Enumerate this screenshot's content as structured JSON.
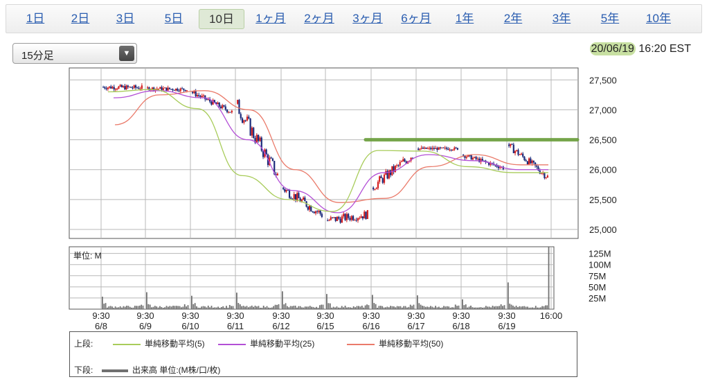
{
  "tabs": [
    {
      "label": "1日",
      "active": false
    },
    {
      "label": "2日",
      "active": false
    },
    {
      "label": "3日",
      "active": false
    },
    {
      "label": "5日",
      "active": false
    },
    {
      "label": "10日",
      "active": true
    },
    {
      "label": "1ヶ月",
      "active": false
    },
    {
      "label": "2ヶ月",
      "active": false
    },
    {
      "label": "3ヶ月",
      "active": false
    },
    {
      "label": "6ヶ月",
      "active": false
    },
    {
      "label": "1年",
      "active": false
    },
    {
      "label": "2年",
      "active": false
    },
    {
      "label": "3年",
      "active": false
    },
    {
      "label": "5年",
      "active": false
    },
    {
      "label": "10年",
      "active": false
    }
  ],
  "interval_select": {
    "value": "15分足"
  },
  "timestamp": {
    "date": "20/06/19",
    "time": "16:20 EST"
  },
  "colors": {
    "candle_up": "#d42020",
    "candle_down": "#1a2a7a",
    "ma5": "#a8cc5a",
    "ma25": "#b34fd6",
    "ma50": "#ea7a6a",
    "volume": "#707070",
    "highlight": "#6a9e3a",
    "grid": "#b8b8b8"
  },
  "chart_data": [
    {
      "type": "candlestick",
      "title": "",
      "ylim": [
        24850,
        27700
      ],
      "yticks": [
        25000,
        25500,
        26000,
        26500,
        27000,
        27500
      ],
      "ytick_labels": [
        "25,000",
        "25,500",
        "26,000",
        "26,500",
        "27,000",
        "27,500"
      ],
      "sessions": [
        {
          "time": "9:30",
          "date": "6/8",
          "open": 27380,
          "close": 27370,
          "high": 27620,
          "low": 27180
        },
        {
          "time": "9:30",
          "date": "6/9",
          "open": 27360,
          "close": 27340,
          "high": 27480,
          "low": 27130
        },
        {
          "time": "9:30",
          "date": "6/10",
          "open": 27300,
          "close": 26960,
          "high": 27420,
          "low": 26900
        },
        {
          "time": "9:30",
          "date": "6/11",
          "open": 27100,
          "close": 25900,
          "high": 27350,
          "low": 25800
        },
        {
          "time": "9:30",
          "date": "6/12",
          "open": 25700,
          "close": 25250,
          "high": 26020,
          "low": 25080
        },
        {
          "time": "9:30",
          "date": "6/15",
          "open": 25150,
          "close": 25250,
          "high": 25700,
          "low": 24880
        },
        {
          "time": "9:30",
          "date": "6/16",
          "open": 25700,
          "close": 26250,
          "high": 26620,
          "low": 25600
        },
        {
          "time": "9:30",
          "date": "6/17",
          "open": 26350,
          "close": 26350,
          "high": 26450,
          "low": 26200
        },
        {
          "time": "9:30",
          "date": "6/18",
          "open": 26250,
          "close": 26030,
          "high": 26320,
          "low": 25920
        },
        {
          "time": "9:30",
          "date": "6/19",
          "open": 26420,
          "close": 25880,
          "high": 26450,
          "low": 25740
        }
      ],
      "last_tick": "16:00",
      "ma5": [
        27300,
        27340,
        27020,
        25900,
        25500,
        25300,
        26320,
        26310,
        26050,
        25950
      ],
      "ma25": [
        27200,
        27320,
        27200,
        26500,
        25650,
        25280,
        25950,
        26250,
        26150,
        26000
      ],
      "ma50": [
        26750,
        27250,
        27320,
        27000,
        26000,
        25450,
        25520,
        26050,
        26250,
        26080
      ],
      "resistance_level": 26500,
      "series": [
        {
          "name": "単純移動平均(5)"
        },
        {
          "name": "単純移動平均(25)"
        },
        {
          "name": "単純移動平均(50)"
        }
      ]
    },
    {
      "type": "bar",
      "title": "",
      "unit_label": "単位: M",
      "ylim": [
        0,
        140
      ],
      "yticks": [
        25,
        50,
        75,
        100,
        125
      ],
      "ytick_labels": [
        "25M",
        "50M",
        "75M",
        "100M",
        "125M"
      ],
      "session_open_volume": [
        28,
        38,
        30,
        37,
        40,
        34,
        32,
        31,
        22,
        60
      ],
      "session_close_volume": [
        8,
        9,
        7,
        11,
        10,
        9,
        10,
        8,
        9,
        140
      ],
      "series": [
        {
          "name": "出来高 単位:(M株/口/枚)"
        }
      ]
    }
  ],
  "legend": {
    "upper_label": "上段:",
    "lower_label": "下段:"
  }
}
